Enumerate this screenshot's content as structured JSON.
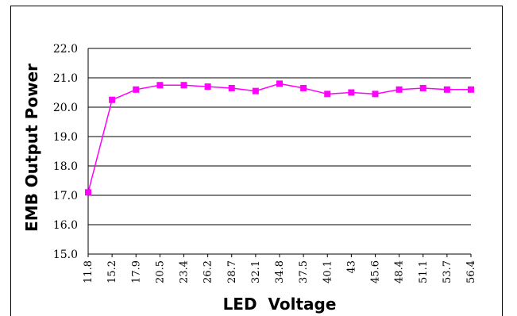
{
  "chart_data": {
    "type": "line",
    "title": "",
    "xlabel": "LED  Voltage",
    "ylabel": "EMB Output Power",
    "categories": [
      "11.8",
      "15.2",
      "17.9",
      "20.5",
      "23.4",
      "26.2",
      "28.7",
      "32.1",
      "34.8",
      "37.5",
      "40.1",
      "43",
      "45.6",
      "48.4",
      "51.1",
      "53.7",
      "56.4"
    ],
    "series": [
      {
        "values": [
          17.1,
          20.25,
          20.6,
          20.75,
          20.75,
          20.7,
          20.65,
          20.55,
          20.8,
          20.65,
          20.45,
          20.5,
          20.45,
          20.6,
          20.65,
          20.6,
          20.6
        ]
      }
    ],
    "yticks": [
      "15.0",
      "16.0",
      "17.0",
      "18.0",
      "19.0",
      "20.0",
      "21.0",
      "22.0"
    ],
    "ylim": [
      15,
      22
    ],
    "grid": true,
    "legend": "none",
    "colors": {
      "series": "#ff00ff",
      "grid": "#000000"
    }
  }
}
